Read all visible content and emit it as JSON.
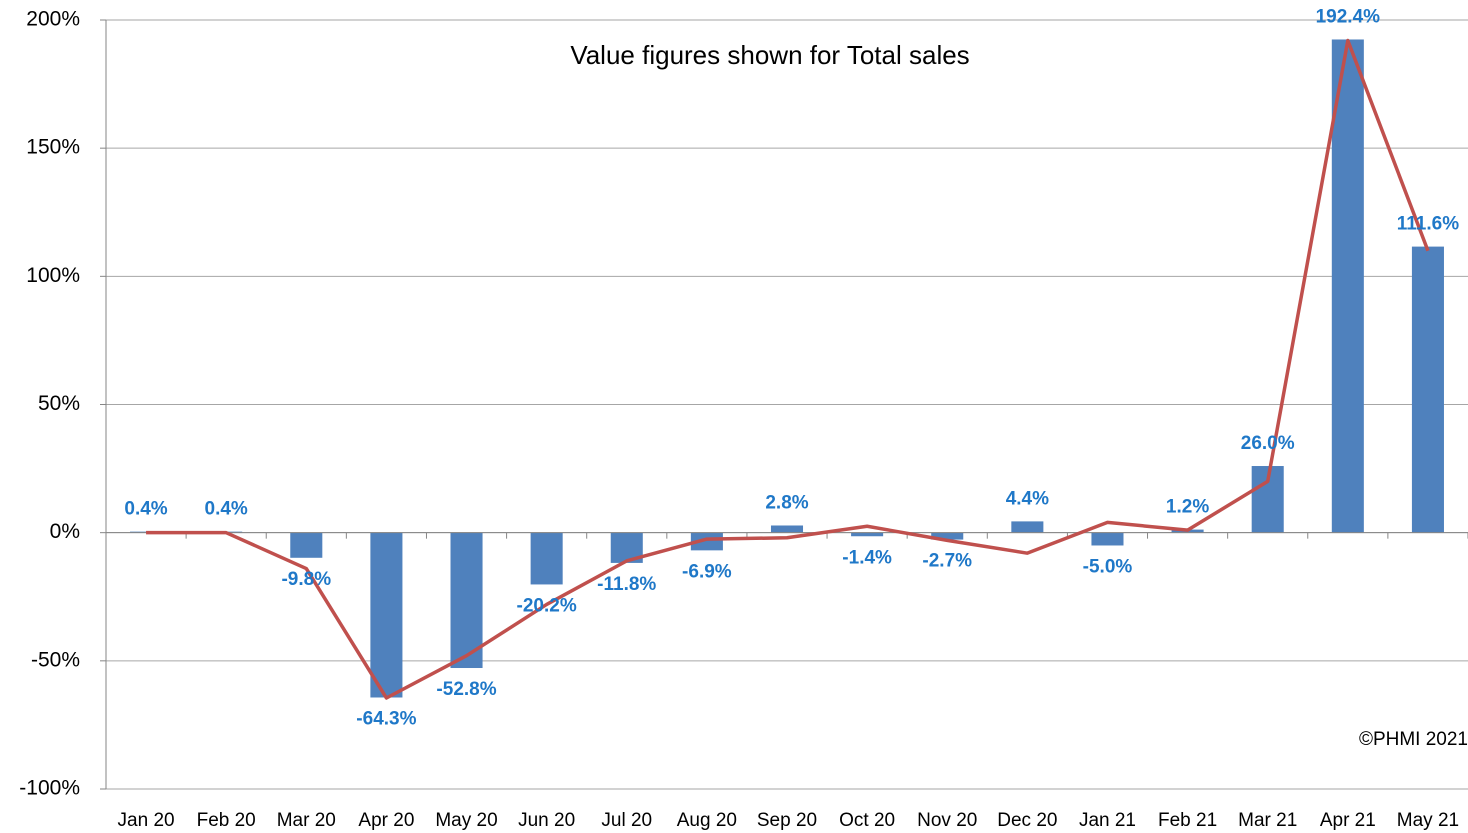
{
  "chart_data": {
    "type": "bar",
    "annotations": [
      "Value figures shown for Total sales",
      "©PHMI 2021"
    ],
    "categories": [
      "Jan 20",
      "Feb 20",
      "Mar 20",
      "Apr 20",
      "May 20",
      "Jun 20",
      "Jul 20",
      "Aug 20",
      "Sep 20",
      "Oct 20",
      "Nov 20",
      "Dec 20",
      "Jan 21",
      "Feb 21",
      "Mar 21",
      "Apr 21",
      "May 21"
    ],
    "series": [
      {
        "type": "bar",
        "color": "#4f81bd",
        "values": [
          0.4,
          0.4,
          -9.8,
          -64.3,
          -52.8,
          -20.2,
          -11.8,
          -6.9,
          2.8,
          -1.4,
          -2.7,
          4.4,
          -5.0,
          1.2,
          26.0,
          192.4,
          111.6
        ],
        "value_labels": [
          "0.4%",
          "0.4%",
          "-9.8%",
          "-64.3%",
          "-52.8%",
          "-20.2%",
          "-11.8%",
          "-6.9%",
          "2.8%",
          "-1.4%",
          "-2.7%",
          "4.4%",
          "-5.0%",
          "1.2%",
          "26.0%",
          "192.4%",
          "111.6%"
        ]
      },
      {
        "type": "line",
        "color": "#c0504d",
        "values": [
          0,
          0,
          -14,
          -64.5,
          -48,
          -28,
          -11,
          -2.5,
          -2,
          2.5,
          -3,
          -8,
          4,
          1,
          20,
          192,
          110
        ]
      }
    ],
    "ylim": [
      -100,
      200
    ],
    "yticks": [
      {
        "value": -100,
        "label": "-100%"
      },
      {
        "value": -50,
        "label": "-50%"
      },
      {
        "value": 0,
        "label": "0%"
      },
      {
        "value": 50,
        "label": "50%"
      },
      {
        "value": 100,
        "label": "100%"
      },
      {
        "value": 150,
        "label": "150%"
      },
      {
        "value": 200,
        "label": "200%"
      }
    ],
    "grid": true
  }
}
